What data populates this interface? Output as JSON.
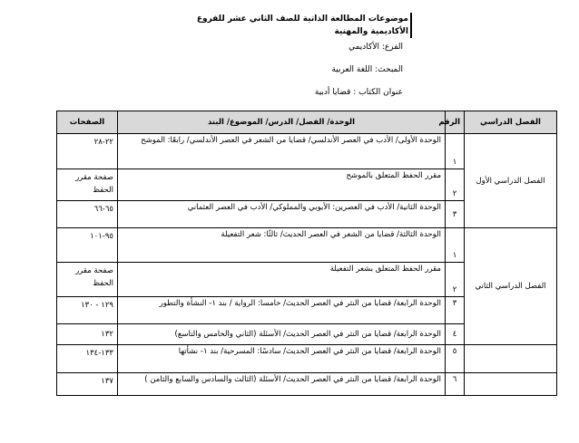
{
  "title": "موضوعات المطالعة الذاتية للصف الثاني عشر للفروع الأكاديمية والمهنية",
  "branch": "الفرع: الأكاديمي",
  "subject": "المبحث: اللغة العربية",
  "book": "عنوان الكتاب : قضايا أدبية",
  "headers": {
    "semester": "الفصل الدراسي",
    "number": "الرقم",
    "topic": "الوحدة/ الفصل/ الدرس/ الموضوع/ البند",
    "pages": "الصفحات"
  },
  "semesters": [
    "الفصل الدراسي الأول",
    "الفصل الدراسي الثاني"
  ],
  "rows": [
    {
      "num": "١",
      "topic": "الوحدة الأولى/ الأدب في العصر الأندلسي/ قضايا من الشعر في العصر الأندلسي/ رابعًا: الموشح",
      "pages": "٢٢-٢٨"
    },
    {
      "num": "٢",
      "topic": "مقرر الحفظ المتعلق بالموشح",
      "pages": "صفحة مقرر الحفظ"
    },
    {
      "num": "٣",
      "topic": "الوحدة الثانية/ الأدب في العصرين: الأيوبي والمملوكي/ الأدب في العصر العثماني",
      "pages": "٦٥-٦٦"
    },
    {
      "num": "١",
      "topic": "الوحدة الثالثة/ قضايا من الشعر في العصر الحديث/ ثالثًا: شعر التفعيلة",
      "pages": "٩٥-١٠١"
    },
    {
      "num": "٢",
      "topic": "مقرر الحفظ المتعلق بشعر التفعيلة",
      "pages": "صفحة مقرر الحفظ"
    },
    {
      "num": "٣",
      "topic": "الوحدة الرابعة/ قضايا من النثر في العصر الحديث/ خامسا: الرواية / بند ١- النشأة والتطور",
      "pages": "١٢٩ - ١٣٠"
    },
    {
      "num": "٤",
      "topic": "الوحدة الرابعة/ قضايا من النثر في العصر الحديث/ الأسئلة (الثاني والخامس والتاسع)",
      "pages": "١٣٢"
    },
    {
      "num": "٥",
      "topic": "الوحدة الرابعة/ قضايا من النثر في العصر الحديث/ سادسًا: المسرحية/ بند ١- نشأتها",
      "pages": "١٣٣-١٣٤"
    },
    {
      "num": "٦",
      "topic": "الوحدة الرابعة/ قضايا من النثر في العصر الحديث/ الأسئلة (الثالث والسادس والسابع والثامن )",
      "pages": "١٣٧"
    }
  ]
}
